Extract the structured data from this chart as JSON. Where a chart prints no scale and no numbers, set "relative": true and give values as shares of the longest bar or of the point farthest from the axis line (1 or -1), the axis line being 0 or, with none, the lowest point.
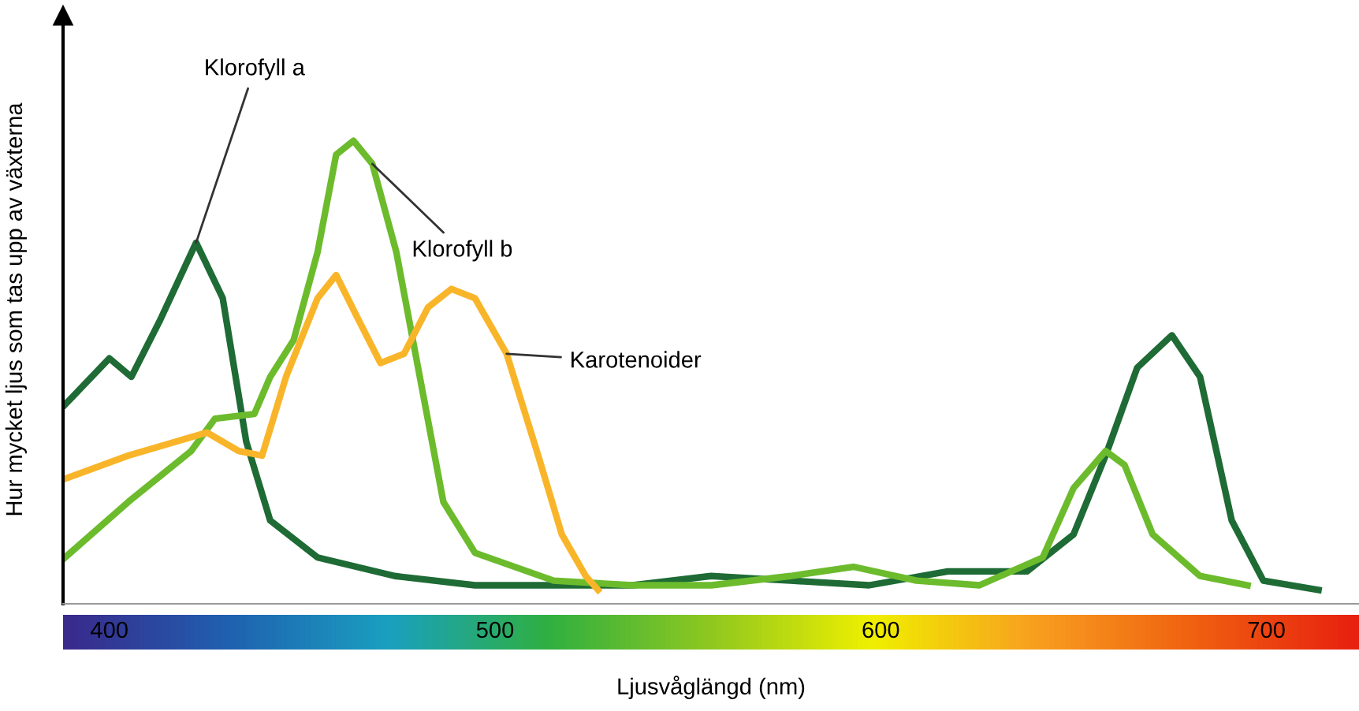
{
  "chart_data": {
    "type": "line",
    "relative": true,
    "xlabel": "Ljusvåglängd (nm)",
    "ylabel": "Hur mycket ljus som tas upp av växterna",
    "xlim": [
      388,
      724
    ],
    "xticks": [
      400,
      500,
      600,
      700
    ],
    "legend": false,
    "marker": "none",
    "line_style": "solid",
    "series": [
      {
        "name": "Klorofyll a",
        "color": "#1e6b35",
        "x": [
          388.5,
          400,
          405.7,
          413,
          422.5,
          429.4,
          435.5,
          441.7,
          454,
          474,
          494.8,
          535.7,
          556,
          576.6,
          597,
          617.4,
          637.9,
          650,
          658.3,
          666.5,
          675.5,
          682.8,
          691,
          699.2,
          713.5
        ],
        "values": [
          0.43,
          0.53,
          0.49,
          0.61,
          0.78,
          0.66,
          0.35,
          0.18,
          0.1,
          0.06,
          0.04,
          0.04,
          0.06,
          0.05,
          0.04,
          0.07,
          0.07,
          0.15,
          0.32,
          0.51,
          0.58,
          0.49,
          0.18,
          0.05,
          0.03
        ]
      },
      {
        "name": "Klorofyll b",
        "color": "#6cbb2c",
        "x": [
          388.5,
          404.9,
          421.2,
          427.4,
          437.6,
          441.7,
          447.8,
          454,
          458.8,
          463.3,
          468.2,
          474.4,
          480.5,
          486.6,
          494.8,
          515.2,
          535.7,
          556.1,
          576.6,
          592.9,
          609.3,
          625.6,
          642,
          650,
          658.3,
          663.2,
          670.5,
          682.8,
          695.1
        ],
        "values": [
          0.1,
          0.22,
          0.33,
          0.4,
          0.41,
          0.49,
          0.57,
          0.76,
          0.97,
          1.0,
          0.95,
          0.76,
          0.49,
          0.22,
          0.11,
          0.05,
          0.04,
          0.04,
          0.06,
          0.08,
          0.05,
          0.04,
          0.1,
          0.25,
          0.33,
          0.3,
          0.15,
          0.06,
          0.04
        ]
      },
      {
        "name": "Karotenoider",
        "color": "#f9b52a",
        "x": [
          388.5,
          404.9,
          425.3,
          433.5,
          439.6,
          445.8,
          454,
          458.8,
          464.2,
          470.3,
          476.4,
          482.6,
          488.7,
          494.8,
          503,
          511.2,
          517.3,
          523.5,
          526.7
        ],
        "values": [
          0.27,
          0.32,
          0.37,
          0.33,
          0.32,
          0.49,
          0.66,
          0.71,
          0.62,
          0.52,
          0.54,
          0.64,
          0.68,
          0.66,
          0.54,
          0.32,
          0.15,
          0.06,
          0.03
        ]
      }
    ]
  }
}
